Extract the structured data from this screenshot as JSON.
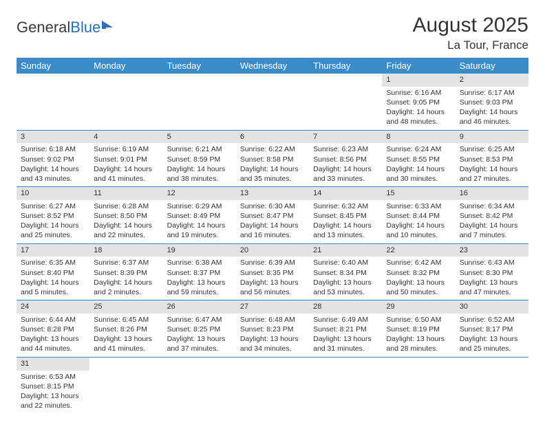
{
  "logo": {
    "text_general": "General",
    "text_blue": "Blue"
  },
  "header": {
    "month_title": "August 2025",
    "location": "La Tour, France"
  },
  "colors": {
    "header_bg": "#3b8bc9",
    "header_text": "#ffffff",
    "daynum_bg": "#e3e3e3",
    "row_border": "#3b8bc9",
    "logo_blue": "#2d6fb5"
  },
  "weekdays": [
    "Sunday",
    "Monday",
    "Tuesday",
    "Wednesday",
    "Thursday",
    "Friday",
    "Saturday"
  ],
  "weeks": [
    [
      {
        "day": "",
        "sunrise": "",
        "sunset": "",
        "daylight": ""
      },
      {
        "day": "",
        "sunrise": "",
        "sunset": "",
        "daylight": ""
      },
      {
        "day": "",
        "sunrise": "",
        "sunset": "",
        "daylight": ""
      },
      {
        "day": "",
        "sunrise": "",
        "sunset": "",
        "daylight": ""
      },
      {
        "day": "",
        "sunrise": "",
        "sunset": "",
        "daylight": ""
      },
      {
        "day": "1",
        "sunrise": "Sunrise: 6:16 AM",
        "sunset": "Sunset: 9:05 PM",
        "daylight": "Daylight: 14 hours and 48 minutes."
      },
      {
        "day": "2",
        "sunrise": "Sunrise: 6:17 AM",
        "sunset": "Sunset: 9:03 PM",
        "daylight": "Daylight: 14 hours and 46 minutes."
      }
    ],
    [
      {
        "day": "3",
        "sunrise": "Sunrise: 6:18 AM",
        "sunset": "Sunset: 9:02 PM",
        "daylight": "Daylight: 14 hours and 43 minutes."
      },
      {
        "day": "4",
        "sunrise": "Sunrise: 6:19 AM",
        "sunset": "Sunset: 9:01 PM",
        "daylight": "Daylight: 14 hours and 41 minutes."
      },
      {
        "day": "5",
        "sunrise": "Sunrise: 6:21 AM",
        "sunset": "Sunset: 8:59 PM",
        "daylight": "Daylight: 14 hours and 38 minutes."
      },
      {
        "day": "6",
        "sunrise": "Sunrise: 6:22 AM",
        "sunset": "Sunset: 8:58 PM",
        "daylight": "Daylight: 14 hours and 35 minutes."
      },
      {
        "day": "7",
        "sunrise": "Sunrise: 6:23 AM",
        "sunset": "Sunset: 8:56 PM",
        "daylight": "Daylight: 14 hours and 33 minutes."
      },
      {
        "day": "8",
        "sunrise": "Sunrise: 6:24 AM",
        "sunset": "Sunset: 8:55 PM",
        "daylight": "Daylight: 14 hours and 30 minutes."
      },
      {
        "day": "9",
        "sunrise": "Sunrise: 6:25 AM",
        "sunset": "Sunset: 8:53 PM",
        "daylight": "Daylight: 14 hours and 27 minutes."
      }
    ],
    [
      {
        "day": "10",
        "sunrise": "Sunrise: 6:27 AM",
        "sunset": "Sunset: 8:52 PM",
        "daylight": "Daylight: 14 hours and 25 minutes."
      },
      {
        "day": "11",
        "sunrise": "Sunrise: 6:28 AM",
        "sunset": "Sunset: 8:50 PM",
        "daylight": "Daylight: 14 hours and 22 minutes."
      },
      {
        "day": "12",
        "sunrise": "Sunrise: 6:29 AM",
        "sunset": "Sunset: 8:49 PM",
        "daylight": "Daylight: 14 hours and 19 minutes."
      },
      {
        "day": "13",
        "sunrise": "Sunrise: 6:30 AM",
        "sunset": "Sunset: 8:47 PM",
        "daylight": "Daylight: 14 hours and 16 minutes."
      },
      {
        "day": "14",
        "sunrise": "Sunrise: 6:32 AM",
        "sunset": "Sunset: 8:45 PM",
        "daylight": "Daylight: 14 hours and 13 minutes."
      },
      {
        "day": "15",
        "sunrise": "Sunrise: 6:33 AM",
        "sunset": "Sunset: 8:44 PM",
        "daylight": "Daylight: 14 hours and 10 minutes."
      },
      {
        "day": "16",
        "sunrise": "Sunrise: 6:34 AM",
        "sunset": "Sunset: 8:42 PM",
        "daylight": "Daylight: 14 hours and 7 minutes."
      }
    ],
    [
      {
        "day": "17",
        "sunrise": "Sunrise: 6:35 AM",
        "sunset": "Sunset: 8:40 PM",
        "daylight": "Daylight: 14 hours and 5 minutes."
      },
      {
        "day": "18",
        "sunrise": "Sunrise: 6:37 AM",
        "sunset": "Sunset: 8:39 PM",
        "daylight": "Daylight: 14 hours and 2 minutes."
      },
      {
        "day": "19",
        "sunrise": "Sunrise: 6:38 AM",
        "sunset": "Sunset: 8:37 PM",
        "daylight": "Daylight: 13 hours and 59 minutes."
      },
      {
        "day": "20",
        "sunrise": "Sunrise: 6:39 AM",
        "sunset": "Sunset: 8:35 PM",
        "daylight": "Daylight: 13 hours and 56 minutes."
      },
      {
        "day": "21",
        "sunrise": "Sunrise: 6:40 AM",
        "sunset": "Sunset: 8:34 PM",
        "daylight": "Daylight: 13 hours and 53 minutes."
      },
      {
        "day": "22",
        "sunrise": "Sunrise: 6:42 AM",
        "sunset": "Sunset: 8:32 PM",
        "daylight": "Daylight: 13 hours and 50 minutes."
      },
      {
        "day": "23",
        "sunrise": "Sunrise: 6:43 AM",
        "sunset": "Sunset: 8:30 PM",
        "daylight": "Daylight: 13 hours and 47 minutes."
      }
    ],
    [
      {
        "day": "24",
        "sunrise": "Sunrise: 6:44 AM",
        "sunset": "Sunset: 8:28 PM",
        "daylight": "Daylight: 13 hours and 44 minutes."
      },
      {
        "day": "25",
        "sunrise": "Sunrise: 6:45 AM",
        "sunset": "Sunset: 8:26 PM",
        "daylight": "Daylight: 13 hours and 41 minutes."
      },
      {
        "day": "26",
        "sunrise": "Sunrise: 6:47 AM",
        "sunset": "Sunset: 8:25 PM",
        "daylight": "Daylight: 13 hours and 37 minutes."
      },
      {
        "day": "27",
        "sunrise": "Sunrise: 6:48 AM",
        "sunset": "Sunset: 8:23 PM",
        "daylight": "Daylight: 13 hours and 34 minutes."
      },
      {
        "day": "28",
        "sunrise": "Sunrise: 6:49 AM",
        "sunset": "Sunset: 8:21 PM",
        "daylight": "Daylight: 13 hours and 31 minutes."
      },
      {
        "day": "29",
        "sunrise": "Sunrise: 6:50 AM",
        "sunset": "Sunset: 8:19 PM",
        "daylight": "Daylight: 13 hours and 28 minutes."
      },
      {
        "day": "30",
        "sunrise": "Sunrise: 6:52 AM",
        "sunset": "Sunset: 8:17 PM",
        "daylight": "Daylight: 13 hours and 25 minutes."
      }
    ],
    [
      {
        "day": "31",
        "sunrise": "Sunrise: 6:53 AM",
        "sunset": "Sunset: 8:15 PM",
        "daylight": "Daylight: 13 hours and 22 minutes."
      },
      {
        "day": "",
        "sunrise": "",
        "sunset": "",
        "daylight": ""
      },
      {
        "day": "",
        "sunrise": "",
        "sunset": "",
        "daylight": ""
      },
      {
        "day": "",
        "sunrise": "",
        "sunset": "",
        "daylight": ""
      },
      {
        "day": "",
        "sunrise": "",
        "sunset": "",
        "daylight": ""
      },
      {
        "day": "",
        "sunrise": "",
        "sunset": "",
        "daylight": ""
      },
      {
        "day": "",
        "sunrise": "",
        "sunset": "",
        "daylight": ""
      }
    ]
  ]
}
